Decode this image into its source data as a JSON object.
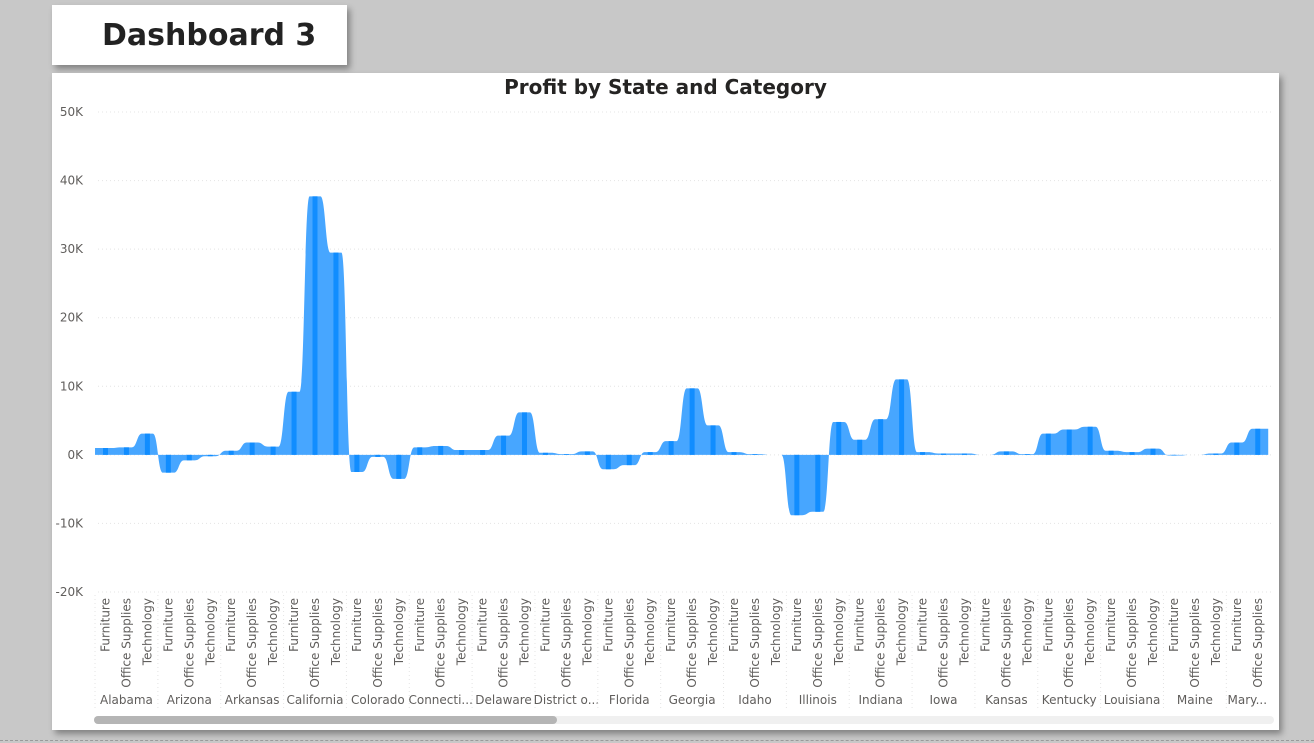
{
  "page": {
    "title": "Dashboard 3"
  },
  "colors": {
    "series_dark": "#118DFF",
    "series_light": "#47A6FF",
    "grid": "#e4e4e4",
    "text": "#605E5C"
  },
  "chart_data": {
    "type": "area",
    "title": "Profit by State and Category",
    "xlabel": "",
    "ylabel": "",
    "ylim": [
      -20000,
      50000
    ],
    "yticks": [
      50000,
      40000,
      30000,
      20000,
      10000,
      0,
      -10000,
      -20000
    ],
    "ytick_labels": [
      "50K",
      "40K",
      "30K",
      "20K",
      "10K",
      "0K",
      "-10K",
      "-20K"
    ],
    "grid": true,
    "states": [
      "Alabama",
      "Arizona",
      "Arkansas",
      "California",
      "Colorado",
      "Connecti...",
      "Delaware",
      "District o...",
      "Florida",
      "Georgia",
      "Idaho",
      "Illinois",
      "Indiana",
      "Iowa",
      "Kansas",
      "Kentucky",
      "Louisiana",
      "Maine",
      "Mary..."
    ],
    "categories": [
      "Furniture",
      "Office Supplies",
      "Technology"
    ],
    "points": [
      {
        "state": "Alabama",
        "category": "Furniture",
        "value": 1000
      },
      {
        "state": "Alabama",
        "category": "Office Supplies",
        "value": 1100
      },
      {
        "state": "Alabama",
        "category": "Technology",
        "value": 3100
      },
      {
        "state": "Arizona",
        "category": "Furniture",
        "value": -2600
      },
      {
        "state": "Arizona",
        "category": "Office Supplies",
        "value": -800
      },
      {
        "state": "Arizona",
        "category": "Technology",
        "value": -200
      },
      {
        "state": "Arkansas",
        "category": "Furniture",
        "value": 600
      },
      {
        "state": "Arkansas",
        "category": "Office Supplies",
        "value": 1800
      },
      {
        "state": "Arkansas",
        "category": "Technology",
        "value": 1200
      },
      {
        "state": "California",
        "category": "Furniture",
        "value": 9200
      },
      {
        "state": "California",
        "category": "Office Supplies",
        "value": 37700
      },
      {
        "state": "California",
        "category": "Technology",
        "value": 29500
      },
      {
        "state": "Colorado",
        "category": "Furniture",
        "value": -2500
      },
      {
        "state": "Colorado",
        "category": "Office Supplies",
        "value": -300
      },
      {
        "state": "Colorado",
        "category": "Technology",
        "value": -3500
      },
      {
        "state": "Connecti...",
        "category": "Furniture",
        "value": 1100
      },
      {
        "state": "Connecti...",
        "category": "Office Supplies",
        "value": 1300
      },
      {
        "state": "Connecti...",
        "category": "Technology",
        "value": 700
      },
      {
        "state": "Delaware",
        "category": "Furniture",
        "value": 700
      },
      {
        "state": "Delaware",
        "category": "Office Supplies",
        "value": 2800
      },
      {
        "state": "Delaware",
        "category": "Technology",
        "value": 6200
      },
      {
        "state": "District o...",
        "category": "Furniture",
        "value": 300
      },
      {
        "state": "District o...",
        "category": "Office Supplies",
        "value": 100
      },
      {
        "state": "District o...",
        "category": "Technology",
        "value": 500
      },
      {
        "state": "Florida",
        "category": "Furniture",
        "value": -2100
      },
      {
        "state": "Florida",
        "category": "Office Supplies",
        "value": -1500
      },
      {
        "state": "Florida",
        "category": "Technology",
        "value": 400
      },
      {
        "state": "Georgia",
        "category": "Furniture",
        "value": 2000
      },
      {
        "state": "Georgia",
        "category": "Office Supplies",
        "value": 9700
      },
      {
        "state": "Georgia",
        "category": "Technology",
        "value": 4300
      },
      {
        "state": "Idaho",
        "category": "Furniture",
        "value": 400
      },
      {
        "state": "Idaho",
        "category": "Office Supplies",
        "value": 100
      },
      {
        "state": "Idaho",
        "category": "Technology",
        "value": 0
      },
      {
        "state": "Illinois",
        "category": "Furniture",
        "value": -8800
      },
      {
        "state": "Illinois",
        "category": "Office Supplies",
        "value": -8300
      },
      {
        "state": "Illinois",
        "category": "Technology",
        "value": 4800
      },
      {
        "state": "Indiana",
        "category": "Furniture",
        "value": 2200
      },
      {
        "state": "Indiana",
        "category": "Office Supplies",
        "value": 5200
      },
      {
        "state": "Indiana",
        "category": "Technology",
        "value": 11000
      },
      {
        "state": "Iowa",
        "category": "Furniture",
        "value": 400
      },
      {
        "state": "Iowa",
        "category": "Office Supplies",
        "value": 200
      },
      {
        "state": "Iowa",
        "category": "Technology",
        "value": 200
      },
      {
        "state": "Kansas",
        "category": "Furniture",
        "value": 0
      },
      {
        "state": "Kansas",
        "category": "Office Supplies",
        "value": 500
      },
      {
        "state": "Kansas",
        "category": "Technology",
        "value": 100
      },
      {
        "state": "Kentucky",
        "category": "Furniture",
        "value": 3100
      },
      {
        "state": "Kentucky",
        "category": "Office Supplies",
        "value": 3700
      },
      {
        "state": "Kentucky",
        "category": "Technology",
        "value": 4100
      },
      {
        "state": "Louisiana",
        "category": "Furniture",
        "value": 600
      },
      {
        "state": "Louisiana",
        "category": "Office Supplies",
        "value": 400
      },
      {
        "state": "Louisiana",
        "category": "Technology",
        "value": 900
      },
      {
        "state": "Maine",
        "category": "Furniture",
        "value": -100
      },
      {
        "state": "Maine",
        "category": "Office Supplies",
        "value": 0
      },
      {
        "state": "Maine",
        "category": "Technology",
        "value": 200
      },
      {
        "state": "Mary...",
        "category": "Furniture",
        "value": 1800
      },
      {
        "state": "Mary...",
        "category": "Office Supplies",
        "value": 3800
      }
    ]
  }
}
